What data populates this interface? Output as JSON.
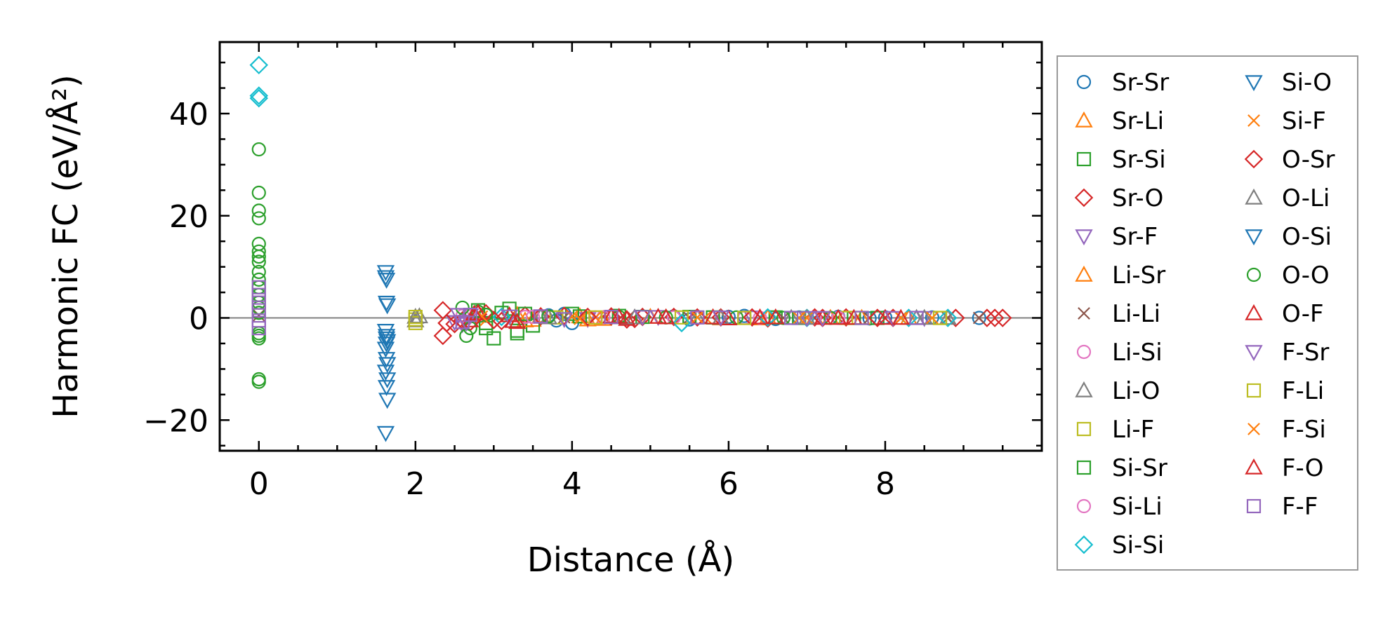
{
  "chart_data": {
    "type": "scatter",
    "title": "",
    "xlabel": "Distance (Å)",
    "ylabel": "Harmonic FC (eV/Å²)",
    "xlim": [
      -0.5,
      10.0
    ],
    "ylim": [
      -26,
      54
    ],
    "x_ticks": [
      0,
      2,
      4,
      6,
      8
    ],
    "x_tick_labels": [
      "0",
      "2",
      "4",
      "6",
      "8"
    ],
    "y_ticks": [
      -20,
      0,
      20,
      40
    ],
    "y_tick_labels": [
      "−20",
      "0",
      "20",
      "40"
    ],
    "grid": false,
    "zero_line": true,
    "legend_position": "outside-right",
    "series": [
      {
        "name": "Sr-Sr",
        "marker": "circle",
        "color": "#1f77b4",
        "x": [
          3.7,
          3.8,
          3.9,
          4.0,
          5.3,
          5.5,
          6.0,
          6.2,
          6.6,
          6.9,
          7.4,
          7.8,
          8.0,
          8.6,
          9.2
        ],
        "y": [
          0.5,
          -0.5,
          0.8,
          -1.0,
          0.3,
          -0.3,
          0.2,
          0.4,
          -0.2,
          0.1,
          0.2,
          -0.1,
          0.1,
          0.1,
          0.0
        ]
      },
      {
        "name": "Sr-Li",
        "marker": "triangle-up",
        "color": "#ff7f0e",
        "x": [
          3.3,
          3.5,
          4.1,
          4.4,
          5.0,
          5.8,
          6.4,
          7.1,
          7.7,
          8.3
        ],
        "y": [
          0.6,
          -0.4,
          0.3,
          -0.2,
          0.2,
          0.1,
          -0.1,
          0.1,
          0.0,
          0.0
        ]
      },
      {
        "name": "Sr-Si",
        "marker": "square",
        "color": "#2ca02c",
        "x": [
          2.8,
          2.9,
          3.0,
          3.2,
          3.3,
          3.5,
          4.0,
          4.6,
          5.5,
          6.6,
          7.6
        ],
        "y": [
          1.5,
          -2.0,
          -4.0,
          1.8,
          -3.0,
          -1.5,
          0.8,
          0.4,
          0.2,
          0.1,
          0.0
        ]
      },
      {
        "name": "Sr-O",
        "marker": "diamond",
        "color": "#d62728",
        "x": [
          2.35,
          2.35,
          2.5,
          2.7,
          2.9,
          3.1,
          3.4,
          3.9,
          4.5,
          4.7,
          4.9,
          5.3,
          5.9,
          6.5,
          7.1,
          7.5,
          8.1,
          8.9,
          9.3,
          9.5
        ],
        "y": [
          1.5,
          -3.5,
          -1.2,
          -0.8,
          0.9,
          -0.6,
          0.5,
          0.4,
          0.3,
          -0.3,
          0.2,
          0.2,
          0.1,
          -0.1,
          0.1,
          0.1,
          0.0,
          0.0,
          0.0,
          0.0
        ]
      },
      {
        "name": "Sr-F",
        "marker": "triangle-down",
        "color": "#9467bd",
        "x": [
          2.5,
          2.6,
          2.7,
          3.6,
          4.2,
          5.1,
          6.3,
          7.2,
          8.5
        ],
        "y": [
          -0.8,
          -1.2,
          0.5,
          0.3,
          -0.2,
          0.2,
          0.1,
          0.0,
          0.0
        ]
      },
      {
        "name": "Li-Sr",
        "marker": "triangle-up",
        "color": "#ff7f0e",
        "x": [
          3.4,
          3.6,
          4.2,
          4.5,
          5.2,
          5.9,
          6.5,
          7.3
        ],
        "y": [
          -0.5,
          0.4,
          -0.3,
          0.2,
          0.1,
          -0.1,
          0.1,
          0.0
        ]
      },
      {
        "name": "Li-Li",
        "marker": "x",
        "color": "#8c564b",
        "x": [
          0.0,
          3.9,
          5.5,
          6.7,
          7.8,
          8.8,
          9.2
        ],
        "y": [
          0.5,
          0.1,
          0.0,
          0.0,
          0.0,
          0.0,
          0.0
        ]
      },
      {
        "name": "Li-Si",
        "marker": "circle",
        "color": "#e377c2",
        "x": [
          2.6,
          3.4,
          4.4,
          5.3,
          6.2,
          7.1
        ],
        "y": [
          0.4,
          0.2,
          0.1,
          0.1,
          0.0,
          0.0
        ]
      },
      {
        "name": "Li-O",
        "marker": "triangle-up",
        "color": "#7f7f7f",
        "x": [
          2.0,
          2.05,
          3.6,
          4.6,
          5.6,
          6.8,
          8.4,
          8.8
        ],
        "y": [
          -0.5,
          0.3,
          0.2,
          0.1,
          0.1,
          0.0,
          0.0,
          0.0
        ]
      },
      {
        "name": "Li-F",
        "marker": "square",
        "color": "#bcbd22",
        "x": [
          2.0,
          2.0,
          3.8,
          5.4,
          7.5,
          8.7
        ],
        "y": [
          -0.3,
          -1.0,
          0.1,
          0.1,
          0.0,
          0.0
        ]
      },
      {
        "name": "Si-Sr",
        "marker": "square",
        "color": "#2ca02c",
        "x": [
          2.9,
          3.1,
          3.3,
          3.4,
          4.1,
          4.9,
          5.8,
          6.9,
          7.9
        ],
        "y": [
          -1.0,
          1.0,
          -2.5,
          0.8,
          0.3,
          0.2,
          0.1,
          0.0,
          0.0
        ]
      },
      {
        "name": "Si-Li",
        "marker": "circle",
        "color": "#e377c2",
        "x": [
          2.7,
          3.5,
          4.3,
          5.6,
          6.4,
          7.4
        ],
        "y": [
          0.3,
          0.2,
          0.1,
          0.0,
          0.0,
          0.0
        ]
      },
      {
        "name": "Si-Si",
        "marker": "diamond",
        "color": "#17becf",
        "x": [
          0.0,
          0.0,
          0.0,
          3.1,
          5.4,
          6.5,
          7.0,
          8.3,
          8.8
        ],
        "y": [
          49.5,
          43.5,
          43.0,
          0.2,
          -1.0,
          0.1,
          0.0,
          0.0,
          0.0
        ]
      },
      {
        "name": "Si-O",
        "marker": "triangle-down",
        "color": "#1f77b4",
        "x": [
          1.62,
          1.63,
          1.63,
          1.64,
          1.62,
          1.63,
          1.64,
          1.62,
          1.63,
          1.64,
          1.62,
          1.63,
          1.64,
          1.62,
          1.63
        ],
        "y": [
          9.0,
          7.5,
          3.0,
          2.5,
          -2.5,
          -3.5,
          -4.5,
          -6.0,
          -8.0,
          -9.0,
          -10.5,
          -13.5,
          -16.0,
          -22.5,
          -5.0
        ]
      },
      {
        "name": "Si-F",
        "marker": "x",
        "color": "#ff7f0e",
        "x": [
          2.9,
          4.0,
          4.3,
          5.7,
          7.0,
          8.2
        ],
        "y": [
          -0.4,
          0.3,
          0.1,
          0.1,
          0.0,
          0.0
        ]
      },
      {
        "name": "O-Sr",
        "marker": "diamond",
        "color": "#d62728",
        "x": [
          2.4,
          2.6,
          2.8,
          3.0,
          3.6,
          4.2,
          4.8,
          5.6,
          6.3,
          7.2,
          7.9,
          9.4
        ],
        "y": [
          -1.0,
          -0.5,
          0.7,
          -0.4,
          0.3,
          0.2,
          -0.2,
          0.1,
          0.1,
          0.0,
          0.0,
          0.0
        ]
      },
      {
        "name": "O-Li",
        "marker": "triangle-up",
        "color": "#7f7f7f",
        "x": [
          2.0,
          3.7,
          4.8,
          5.9,
          7.0,
          8.5
        ],
        "y": [
          0.2,
          0.1,
          0.1,
          0.0,
          0.0,
          0.0
        ]
      },
      {
        "name": "O-Si",
        "marker": "triangle-down",
        "color": "#1f77b4",
        "x": [
          1.62,
          1.63,
          1.64
        ],
        "y": [
          8.0,
          -4.0,
          -12.0
        ]
      },
      {
        "name": "O-O",
        "marker": "circle",
        "color": "#2ca02c",
        "x": [
          0.0,
          0.0,
          0.0,
          0.0,
          0.0,
          0.0,
          0.0,
          0.0,
          0.0,
          0.0,
          0.0,
          0.0,
          0.0,
          0.0,
          0.0,
          0.0,
          0.0,
          0.0,
          0.0,
          0.0,
          2.6,
          2.65,
          2.7,
          2.8,
          2.9,
          3.7,
          4.6,
          5.2,
          6.1,
          6.7,
          7.3
        ],
        "y": [
          33.0,
          24.5,
          21.0,
          19.5,
          14.5,
          13.0,
          12.0,
          11.0,
          9.0,
          7.5,
          6.0,
          4.5,
          3.0,
          2.0,
          -3.0,
          -3.5,
          -4.0,
          -12.0,
          -12.5,
          1.0,
          2.0,
          -3.5,
          -2.0,
          1.2,
          0.6,
          0.3,
          0.2,
          0.1,
          0.1,
          0.0,
          0.0
        ]
      },
      {
        "name": "O-F",
        "marker": "triangle-up",
        "color": "#d62728",
        "x": [
          2.7,
          2.8,
          3.2,
          3.3,
          4.5,
          4.7,
          5.1,
          5.8,
          6.0,
          6.6,
          7.2,
          7.6,
          8.0
        ],
        "y": [
          -0.5,
          1.0,
          0.5,
          -0.8,
          0.3,
          -0.2,
          0.2,
          0.1,
          -0.1,
          0.1,
          0.0,
          0.0,
          0.0
        ]
      },
      {
        "name": "F-Sr",
        "marker": "triangle-down",
        "color": "#9467bd",
        "x": [
          2.55,
          2.65,
          3.2,
          3.9,
          4.9,
          5.9,
          7.0,
          7.2,
          8.1
        ],
        "y": [
          0.6,
          -0.9,
          0.3,
          -0.2,
          0.2,
          0.1,
          0.0,
          0.0,
          0.0
        ]
      },
      {
        "name": "F-Li",
        "marker": "square",
        "color": "#bcbd22",
        "x": [
          2.0,
          4.3,
          6.2,
          7.7,
          8.7
        ],
        "y": [
          0.2,
          0.1,
          0.0,
          0.0,
          0.0
        ]
      },
      {
        "name": "F-Si",
        "marker": "x",
        "color": "#ff7f0e",
        "x": [
          2.85,
          4.1,
          5.6,
          6.9,
          8.6
        ],
        "y": [
          0.3,
          -0.2,
          0.1,
          0.0,
          0.0
        ]
      },
      {
        "name": "F-O",
        "marker": "triangle-up",
        "color": "#d62728",
        "x": [
          2.75,
          3.25,
          4.6,
          5.2,
          6.4,
          7.4,
          8.2
        ],
        "y": [
          0.8,
          -0.6,
          0.2,
          0.1,
          0.1,
          0.0,
          0.0
        ]
      },
      {
        "name": "F-F",
        "marker": "square",
        "color": "#9467bd",
        "x": [
          0.0,
          0.0,
          0.0,
          0.0,
          0.0,
          0.0,
          2.6,
          2.7,
          3.6,
          4.5,
          5.6,
          6.8,
          7.7,
          8.4
        ],
        "y": [
          6.0,
          4.5,
          3.0,
          1.5,
          -0.5,
          -2.0,
          -0.8,
          0.6,
          0.3,
          0.2,
          0.1,
          0.0,
          0.0,
          0.0
        ]
      }
    ]
  }
}
